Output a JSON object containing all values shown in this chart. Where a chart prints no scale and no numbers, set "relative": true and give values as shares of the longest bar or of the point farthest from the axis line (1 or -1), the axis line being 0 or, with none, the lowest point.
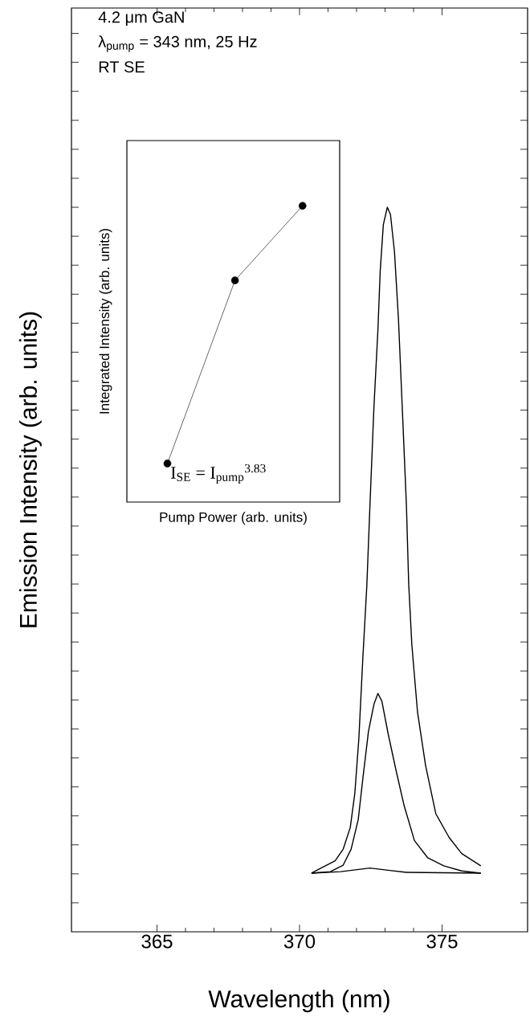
{
  "chart_data": [
    {
      "type": "line",
      "xlabel": "Wavelength (nm)",
      "ylabel": "Emission Intensity (arb. units)",
      "relative": true,
      "xlim": [
        362,
        378
      ],
      "xticks": [
        365,
        370,
        375
      ],
      "tick_labels": "x",
      "annotations": [
        "4.2 μm GaN",
        "λ$_{pump}$ = 343 nm, 25 Hz",
        "RT SE"
      ],
      "series": [
        {
          "color": "#000000",
          "x": [
            370.42,
            370.81,
            371.25,
            371.53,
            371.78,
            371.94,
            372.08,
            372.22,
            372.36,
            372.47,
            372.61,
            372.75,
            372.83,
            372.94,
            373.08,
            373.19,
            373.33,
            373.47,
            373.61,
            373.75,
            373.83,
            373.94,
            374.14,
            374.42,
            374.78,
            375.25,
            375.69,
            376.36
          ],
          "values": [
            0.081,
            0.089,
            0.098,
            0.114,
            0.144,
            0.191,
            0.266,
            0.377,
            0.477,
            0.588,
            0.724,
            0.831,
            0.912,
            0.976,
            1.0,
            0.99,
            0.939,
            0.846,
            0.718,
            0.588,
            0.48,
            0.396,
            0.303,
            0.23,
            0.163,
            0.13,
            0.108,
            0.091
          ]
        },
        {
          "color": "#000000",
          "x": [
            370.42,
            371.08,
            371.53,
            371.81,
            372.06,
            372.22,
            372.42,
            372.61,
            372.75,
            372.89,
            373.11,
            373.39,
            373.67,
            374.03,
            374.5,
            375.06,
            375.69,
            376.36
          ],
          "values": [
            0.081,
            0.083,
            0.092,
            0.114,
            0.155,
            0.211,
            0.277,
            0.314,
            0.329,
            0.318,
            0.273,
            0.222,
            0.174,
            0.126,
            0.102,
            0.091,
            0.084,
            0.081
          ]
        },
        {
          "color": "#000000",
          "x": [
            370.42,
            371.44,
            372.47,
            373.11,
            373.75,
            376.36
          ],
          "values": [
            0.081,
            0.083,
            0.088,
            0.085,
            0.082,
            0.081
          ]
        }
      ]
    },
    {
      "type": "line",
      "xlabel": "Pump Power (arb. units)",
      "ylabel": "Integrated Intensity (arb. units)",
      "relative": true,
      "tick_labels": false,
      "marker": "circle",
      "annotations": [
        "I$_{SE}$ = I$_{pump}$$^{3.83}$"
      ],
      "categories": [
        null,
        null,
        null
      ],
      "series": [
        {
          "color": "#000000",
          "values": [
            0.13,
            0.748,
            1.0
          ]
        }
      ]
    }
  ]
}
